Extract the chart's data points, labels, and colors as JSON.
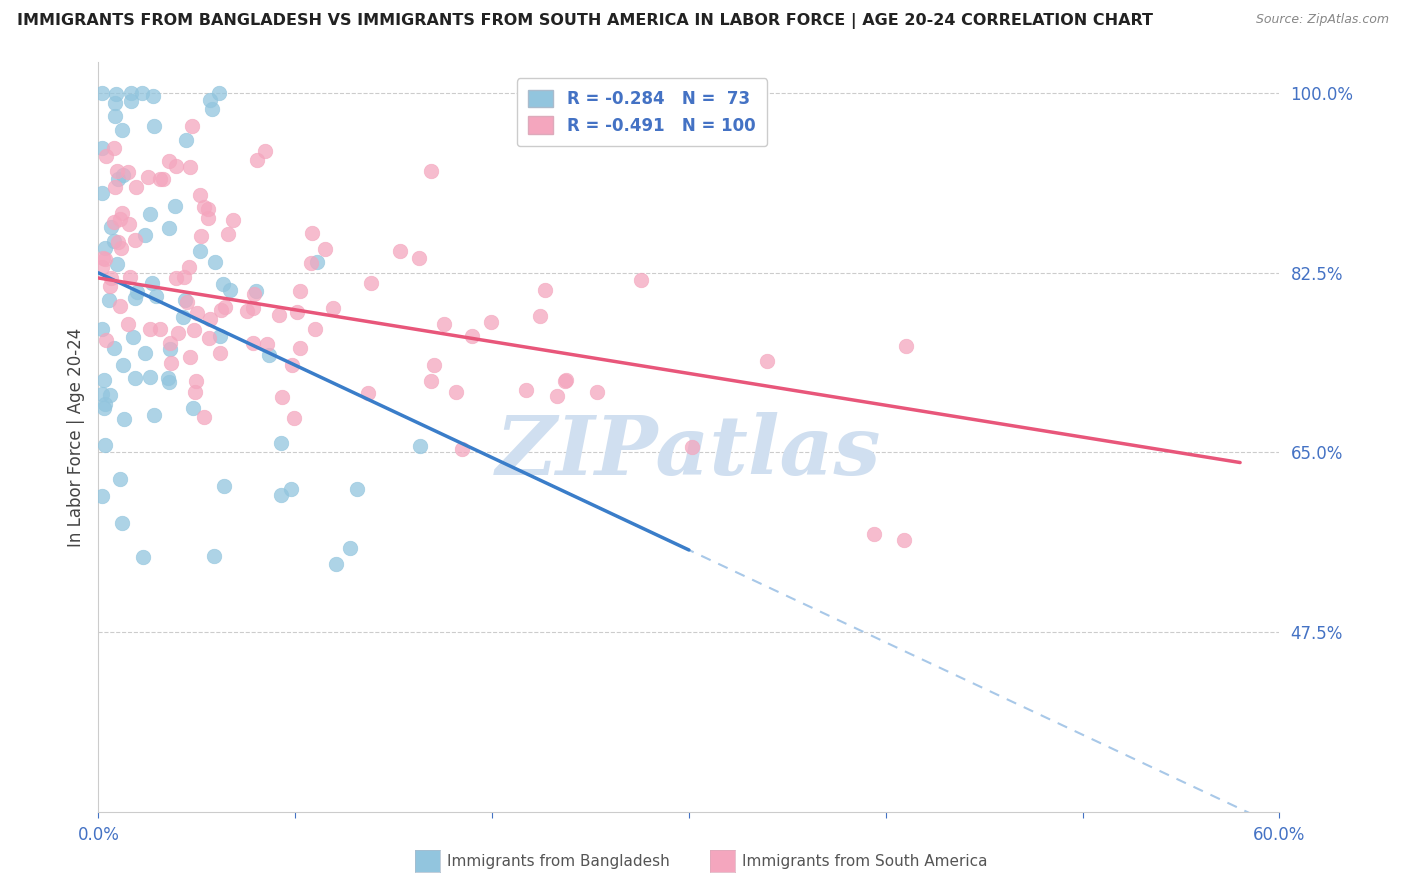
{
  "title": "IMMIGRANTS FROM BANGLADESH VS IMMIGRANTS FROM SOUTH AMERICA IN LABOR FORCE | AGE 20-24 CORRELATION CHART",
  "source": "Source: ZipAtlas.com",
  "ylabel": "In Labor Force | Age 20-24",
  "xlabel_bangladesh": "Immigrants from Bangladesh",
  "xlabel_south_america": "Immigrants from South America",
  "xlim": [
    0.0,
    0.6
  ],
  "ylim": [
    0.3,
    1.03
  ],
  "yticks": [
    0.475,
    0.65,
    0.825,
    1.0
  ],
  "ytick_labels": [
    "47.5%",
    "65.0%",
    "82.5%",
    "100.0%"
  ],
  "xtick_left_label": "0.0%",
  "xtick_right_label": "60.0%",
  "legend_R_bangladesh": "-0.284",
  "legend_N_bangladesh": " 73",
  "legend_R_south_america": "-0.491",
  "legend_N_south_america": "100",
  "blue_color": "#92c5de",
  "pink_color": "#f4a6be",
  "blue_line_color": "#3a7dc9",
  "pink_line_color": "#e8567a",
  "dashed_color": "#a8c8e8",
  "text_color": "#4472c4",
  "title_color": "#222222",
  "source_color": "#888888",
  "watermark_color": "#d0dff0",
  "watermark_text": "ZIPatlas",
  "grid_color": "#cccccc",
  "legend_box_color": "#f0f0f0",
  "seed": 99
}
